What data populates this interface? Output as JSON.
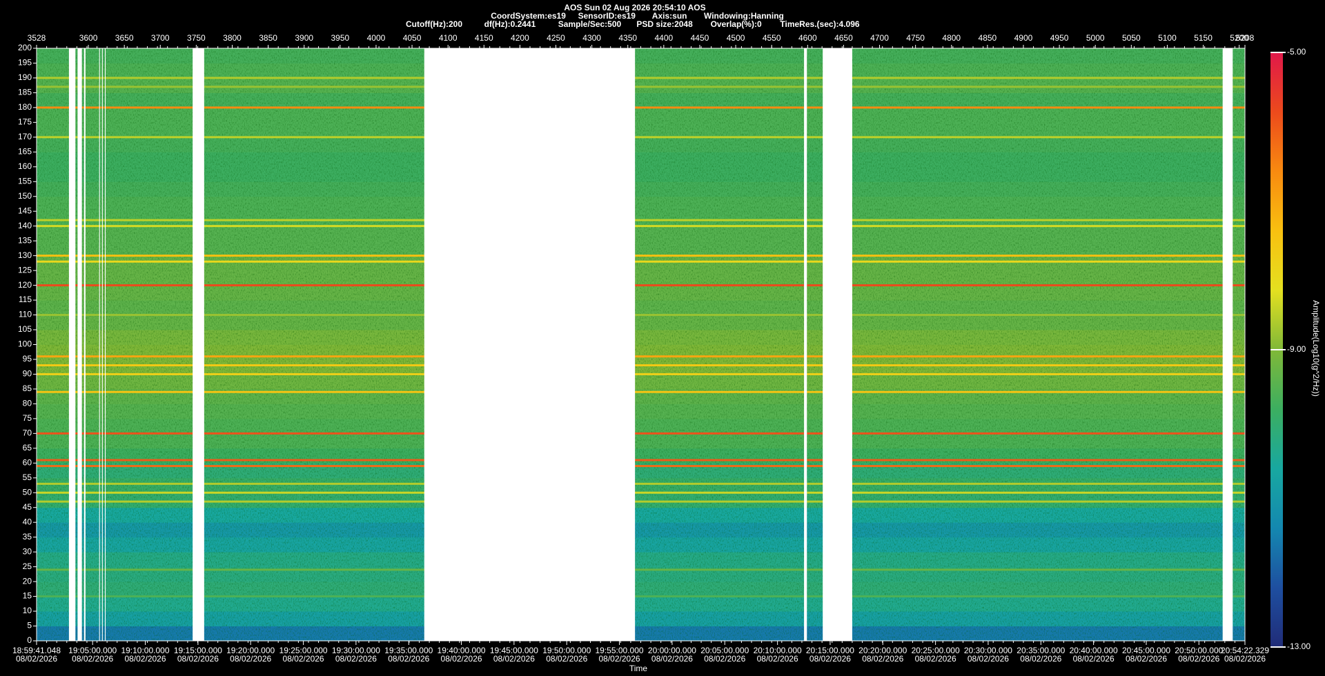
{
  "chart_data": {
    "type": "spectrogram",
    "title": "AOS  Sun 02 Aug 2026 20:54:10  AOS",
    "subtitle_lines": [
      [
        "CoordSystem:es19",
        "SensorID:es19",
        "Axis:sun",
        "Windowing:Hanning"
      ],
      [
        "Cutoff(Hz):200",
        "df(Hz):0.2441",
        "Sample/Sec:500",
        "PSD size:2048",
        "Overlap(%):0",
        "TimeRes.(sec):4.096"
      ]
    ],
    "x_label": "Time",
    "colorbar_label": "Amplitude(Log10(g^2/Hz))",
    "xlim": [
      3528,
      5208
    ],
    "xticks": [
      3528,
      3600,
      3650,
      3700,
      3750,
      3800,
      3850,
      3900,
      3950,
      4000,
      4050,
      4100,
      4150,
      4200,
      4250,
      4300,
      4350,
      4400,
      4450,
      4500,
      4550,
      4600,
      4650,
      4700,
      4750,
      4800,
      4850,
      4900,
      4950,
      5000,
      5050,
      5100,
      5150,
      5200,
      5208
    ],
    "time_date": "08/02/2026",
    "time_ticks": [
      {
        "value": 3528,
        "label": "18:59:41.048"
      },
      {
        "value": 3605.9,
        "label": "19:05:00.000"
      },
      {
        "value": 3679.1,
        "label": "19:10:00.000"
      },
      {
        "value": 3752.4,
        "label": "19:15:00.000"
      },
      {
        "value": 3825.6,
        "label": "19:20:00.000"
      },
      {
        "value": 3898.9,
        "label": "19:25:00.000"
      },
      {
        "value": 3972.1,
        "label": "19:30:00.000"
      },
      {
        "value": 4045.4,
        "label": "19:35:00.000"
      },
      {
        "value": 4118.6,
        "label": "19:40:00.000"
      },
      {
        "value": 4191.8,
        "label": "19:45:00.000"
      },
      {
        "value": 4265.1,
        "label": "19:50:00.000"
      },
      {
        "value": 4338.3,
        "label": "19:55:00.000"
      },
      {
        "value": 4411.6,
        "label": "20:00:00.000"
      },
      {
        "value": 4484.8,
        "label": "20:05:00.000"
      },
      {
        "value": 4558.1,
        "label": "20:10:00.000"
      },
      {
        "value": 4631.3,
        "label": "20:15:00.000"
      },
      {
        "value": 4704.5,
        "label": "20:20:00.000"
      },
      {
        "value": 4777.8,
        "label": "20:25:00.000"
      },
      {
        "value": 4851.0,
        "label": "20:30:00.000"
      },
      {
        "value": 4924.3,
        "label": "20:35:00.000"
      },
      {
        "value": 4997.5,
        "label": "20:40:00.000"
      },
      {
        "value": 5070.8,
        "label": "20:45:00.000"
      },
      {
        "value": 5144.0,
        "label": "20:50:00.000"
      },
      {
        "value": 5208,
        "label": "20:54:22.329"
      }
    ],
    "ylim": [
      0,
      200
    ],
    "yticks": [
      0,
      5,
      10,
      15,
      20,
      25,
      30,
      35,
      40,
      45,
      50,
      55,
      60,
      65,
      70,
      75,
      80,
      85,
      90,
      95,
      100,
      105,
      110,
      115,
      120,
      125,
      130,
      135,
      140,
      145,
      150,
      155,
      160,
      165,
      170,
      175,
      180,
      185,
      190,
      195,
      200
    ],
    "clim": [
      -13,
      -5
    ],
    "cticks": [
      {
        "value": -5,
        "label": "-5.00"
      },
      {
        "value": -9,
        "label": "-9.00"
      },
      {
        "value": -13,
        "label": "-13.00"
      }
    ],
    "colormap": [
      "#202c78",
      "#1e4fa0",
      "#1488b0",
      "#18a8a0",
      "#3cae60",
      "#80b838",
      "#e4e020",
      "#f8c010",
      "#f88a10",
      "#ec4a1c",
      "#e0184a"
    ],
    "bands": {
      "edges": [
        0,
        5,
        10,
        15,
        20,
        25,
        30,
        35,
        40,
        45,
        50,
        55,
        60,
        65,
        70,
        75,
        80,
        85,
        90,
        95,
        100,
        105,
        110,
        115,
        120,
        125,
        130,
        135,
        140,
        145,
        150,
        155,
        160,
        165,
        170,
        175,
        180,
        185,
        190,
        195,
        200
      ],
      "values": [
        -11.6,
        -10.8,
        -10.4,
        -10.1,
        -10.2,
        -10.3,
        -10.7,
        -11.0,
        -10.6,
        -10.0,
        -9.9,
        -10.1,
        -9.8,
        -9.6,
        -9.6,
        -9.5,
        -9.4,
        -9.2,
        -9.0,
        -9.0,
        -9.1,
        -9.3,
        -9.4,
        -9.3,
        -9.3,
        -9.3,
        -9.5,
        -9.5,
        -9.6,
        -9.6,
        -9.7,
        -9.8,
        -9.8,
        -9.7,
        -9.6,
        -9.6,
        -9.7,
        -9.5,
        -9.6,
        -9.7
      ]
    },
    "lines": {
      "frequencies": [
        180,
        190,
        187,
        170,
        140,
        142,
        130,
        128,
        120,
        110,
        96,
        93,
        90,
        84,
        70,
        61,
        59,
        53,
        50,
        47,
        24,
        15
      ],
      "values": [
        -6.6,
        -8.6,
        -8.8,
        -8.5,
        -8.3,
        -8.5,
        -7.4,
        -8.0,
        -5.8,
        -8.8,
        -7.0,
        -7.6,
        -7.8,
        -7.5,
        -5.9,
        -6.0,
        -6.2,
        -8.6,
        -8.4,
        -8.6,
        -9.3,
        -9.6
      ]
    },
    "gaps": [
      [
        3573,
        3582
      ],
      [
        3585,
        3591
      ],
      [
        3594,
        3596
      ],
      [
        3615,
        3616
      ],
      [
        3619,
        3620
      ],
      [
        3623,
        3624
      ],
      [
        3745,
        3761
      ],
      [
        4067,
        4360
      ],
      [
        4595,
        4599
      ],
      [
        4621,
        4662
      ],
      [
        5177,
        5191
      ]
    ]
  }
}
